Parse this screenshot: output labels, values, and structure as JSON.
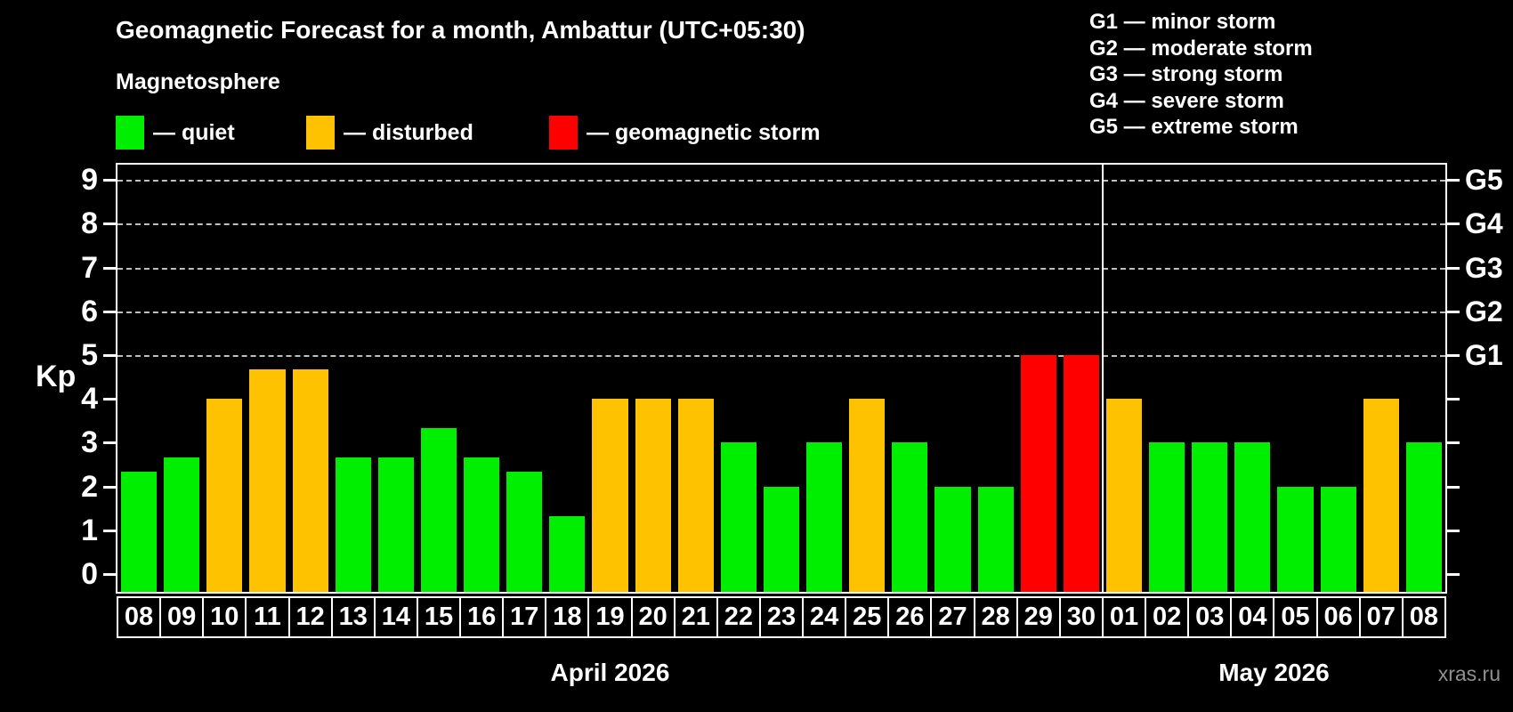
{
  "header": {
    "title": "Geomagnetic Forecast for a month, Ambattur (UTC+05:30)"
  },
  "legend": {
    "heading": "Magnetosphere",
    "items": [
      {
        "key": "quiet",
        "label": "— quiet",
        "color": "#00ee00"
      },
      {
        "key": "disturbed",
        "label": "— disturbed",
        "color": "#ffc200"
      },
      {
        "key": "storm",
        "label": "— geomagnetic storm",
        "color": "#ff0000"
      }
    ]
  },
  "g_legend": [
    "G1 — minor storm",
    "G2 — moderate storm",
    "G3 — strong storm",
    "G4 — severe storm",
    "G5 — extreme storm"
  ],
  "watermark": "xras.ru",
  "chart_data": {
    "type": "bar",
    "title": "Geomagnetic Forecast for a month, Ambattur (UTC+05:30)",
    "ylabel": "Kp",
    "ylim": [
      0,
      9
    ],
    "yticks": [
      0,
      1,
      2,
      3,
      4,
      5,
      6,
      7,
      8,
      9
    ],
    "gridlines_at": [
      5,
      6,
      7,
      8,
      9
    ],
    "grid": "dashed, only at storm levels",
    "legend_position": "top-left",
    "right_axis": [
      {
        "kp": 5,
        "label": "G1"
      },
      {
        "kp": 6,
        "label": "G2"
      },
      {
        "kp": 7,
        "label": "G3"
      },
      {
        "kp": 8,
        "label": "G4"
      },
      {
        "kp": 9,
        "label": "G5"
      }
    ],
    "months": [
      {
        "label": "April 2026",
        "days": [
          {
            "day": "08",
            "kp": 2.33,
            "status": "quiet"
          },
          {
            "day": "09",
            "kp": 2.67,
            "status": "quiet"
          },
          {
            "day": "10",
            "kp": 4.0,
            "status": "disturbed"
          },
          {
            "day": "11",
            "kp": 4.67,
            "status": "disturbed"
          },
          {
            "day": "12",
            "kp": 4.67,
            "status": "disturbed"
          },
          {
            "day": "13",
            "kp": 2.67,
            "status": "quiet"
          },
          {
            "day": "14",
            "kp": 2.67,
            "status": "quiet"
          },
          {
            "day": "15",
            "kp": 3.33,
            "status": "quiet"
          },
          {
            "day": "16",
            "kp": 2.67,
            "status": "quiet"
          },
          {
            "day": "17",
            "kp": 2.33,
            "status": "quiet"
          },
          {
            "day": "18",
            "kp": 1.33,
            "status": "quiet"
          },
          {
            "day": "19",
            "kp": 4.0,
            "status": "disturbed"
          },
          {
            "day": "20",
            "kp": 4.0,
            "status": "disturbed"
          },
          {
            "day": "21",
            "kp": 4.0,
            "status": "disturbed"
          },
          {
            "day": "22",
            "kp": 3.0,
            "status": "quiet"
          },
          {
            "day": "23",
            "kp": 2.0,
            "status": "quiet"
          },
          {
            "day": "24",
            "kp": 3.0,
            "status": "quiet"
          },
          {
            "day": "25",
            "kp": 4.0,
            "status": "disturbed"
          },
          {
            "day": "26",
            "kp": 3.0,
            "status": "quiet"
          },
          {
            "day": "27",
            "kp": 2.0,
            "status": "quiet"
          },
          {
            "day": "28",
            "kp": 2.0,
            "status": "quiet"
          },
          {
            "day": "29",
            "kp": 5.0,
            "status": "storm"
          },
          {
            "day": "30",
            "kp": 5.0,
            "status": "storm"
          }
        ]
      },
      {
        "label": "May 2026",
        "days": [
          {
            "day": "01",
            "kp": 4.0,
            "status": "disturbed"
          },
          {
            "day": "02",
            "kp": 3.0,
            "status": "quiet"
          },
          {
            "day": "03",
            "kp": 3.0,
            "status": "quiet"
          },
          {
            "day": "04",
            "kp": 3.0,
            "status": "quiet"
          },
          {
            "day": "05",
            "kp": 2.0,
            "status": "quiet"
          },
          {
            "day": "06",
            "kp": 2.0,
            "status": "quiet"
          },
          {
            "day": "07",
            "kp": 4.0,
            "status": "disturbed"
          },
          {
            "day": "08",
            "kp": 3.0,
            "status": "quiet"
          }
        ]
      }
    ]
  }
}
